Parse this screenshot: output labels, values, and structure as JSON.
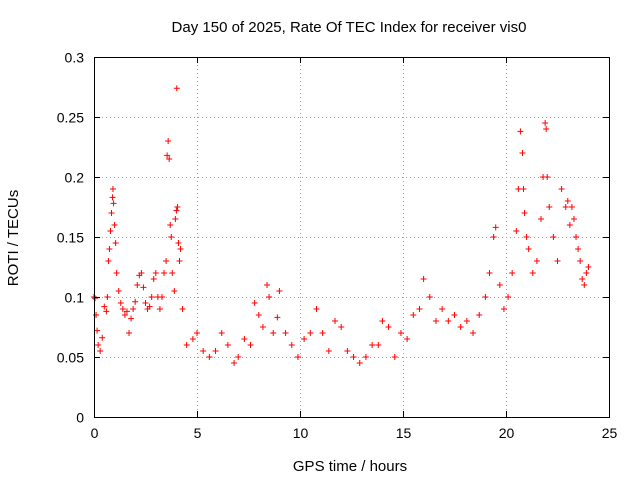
{
  "chart_data": {
    "type": "scatter",
    "title": "Day 150 of 2025, Rate Of TEC Index for receiver vis0",
    "xlabel": "GPS time / hours",
    "ylabel": "ROTI / TECUs",
    "xlim": [
      0,
      25
    ],
    "ylim": [
      0,
      0.3
    ],
    "xticks": [
      "0",
      "5",
      "10",
      "15",
      "20",
      "25"
    ],
    "yticks": [
      "0",
      "0.05",
      "0.1",
      "0.15",
      "0.2",
      "0.25",
      "0.3"
    ],
    "grid": true,
    "marker": "+",
    "color": "#ff0000",
    "legend": "none",
    "series": [
      {
        "points": [
          [
            0.0,
            0.1
          ],
          [
            0.05,
            0.099
          ],
          [
            0.1,
            0.085
          ],
          [
            0.15,
            0.072
          ],
          [
            0.2,
            0.06
          ],
          [
            0.3,
            0.055
          ],
          [
            0.4,
            0.066
          ],
          [
            0.5,
            0.092
          ],
          [
            0.6,
            0.088
          ],
          [
            0.65,
            0.1
          ],
          [
            0.7,
            0.13
          ],
          [
            0.75,
            0.14
          ],
          [
            0.8,
            0.155
          ],
          [
            0.85,
            0.17
          ],
          [
            0.9,
            0.183
          ],
          [
            0.92,
            0.19
          ],
          [
            0.95,
            0.178
          ],
          [
            1.0,
            0.16
          ],
          [
            1.05,
            0.145
          ],
          [
            1.1,
            0.12
          ],
          [
            1.2,
            0.105
          ],
          [
            1.3,
            0.095
          ],
          [
            1.4,
            0.09
          ],
          [
            1.5,
            0.085
          ],
          [
            1.6,
            0.088
          ],
          [
            1.7,
            0.07
          ],
          [
            1.8,
            0.082
          ],
          [
            1.9,
            0.09
          ],
          [
            2.0,
            0.096
          ],
          [
            2.1,
            0.11
          ],
          [
            2.2,
            0.118
          ],
          [
            2.3,
            0.12
          ],
          [
            2.4,
            0.108
          ],
          [
            2.5,
            0.095
          ],
          [
            2.6,
            0.09
          ],
          [
            2.7,
            0.092
          ],
          [
            2.8,
            0.1
          ],
          [
            2.9,
            0.115
          ],
          [
            3.0,
            0.12
          ],
          [
            3.1,
            0.1
          ],
          [
            3.2,
            0.09
          ],
          [
            3.3,
            0.1
          ],
          [
            3.4,
            0.12
          ],
          [
            3.5,
            0.13
          ],
          [
            3.55,
            0.218
          ],
          [
            3.6,
            0.23
          ],
          [
            3.65,
            0.215
          ],
          [
            3.7,
            0.16
          ],
          [
            3.75,
            0.15
          ],
          [
            3.8,
            0.12
          ],
          [
            3.9,
            0.105
          ],
          [
            3.95,
            0.165
          ],
          [
            4.0,
            0.172
          ],
          [
            4.02,
            0.274
          ],
          [
            4.05,
            0.175
          ],
          [
            4.1,
            0.145
          ],
          [
            4.15,
            0.13
          ],
          [
            4.2,
            0.14
          ],
          [
            4.3,
            0.09
          ],
          [
            4.5,
            0.06
          ],
          [
            4.8,
            0.065
          ],
          [
            5.0,
            0.07
          ],
          [
            5.3,
            0.055
          ],
          [
            5.6,
            0.05
          ],
          [
            5.9,
            0.055
          ],
          [
            6.2,
            0.07
          ],
          [
            6.5,
            0.06
          ],
          [
            6.8,
            0.045
          ],
          [
            7.0,
            0.05
          ],
          [
            7.3,
            0.065
          ],
          [
            7.6,
            0.06
          ],
          [
            7.8,
            0.095
          ],
          [
            8.0,
            0.085
          ],
          [
            8.2,
            0.075
          ],
          [
            8.4,
            0.11
          ],
          [
            8.5,
            0.1
          ],
          [
            8.7,
            0.07
          ],
          [
            8.9,
            0.083
          ],
          [
            9.0,
            0.105
          ],
          [
            9.3,
            0.07
          ],
          [
            9.6,
            0.06
          ],
          [
            9.9,
            0.05
          ],
          [
            10.2,
            0.065
          ],
          [
            10.5,
            0.07
          ],
          [
            10.8,
            0.09
          ],
          [
            11.1,
            0.07
          ],
          [
            11.4,
            0.055
          ],
          [
            11.7,
            0.08
          ],
          [
            12.0,
            0.075
          ],
          [
            12.3,
            0.055
          ],
          [
            12.6,
            0.05
          ],
          [
            12.9,
            0.045
          ],
          [
            13.2,
            0.05
          ],
          [
            13.5,
            0.06
          ],
          [
            13.8,
            0.06
          ],
          [
            14.0,
            0.08
          ],
          [
            14.3,
            0.075
          ],
          [
            14.6,
            0.05
          ],
          [
            14.9,
            0.07
          ],
          [
            15.2,
            0.065
          ],
          [
            15.5,
            0.085
          ],
          [
            15.8,
            0.09
          ],
          [
            16.0,
            0.115
          ],
          [
            16.3,
            0.1
          ],
          [
            16.6,
            0.08
          ],
          [
            16.9,
            0.09
          ],
          [
            17.2,
            0.08
          ],
          [
            17.5,
            0.085
          ],
          [
            17.8,
            0.075
          ],
          [
            18.1,
            0.08
          ],
          [
            18.4,
            0.07
          ],
          [
            18.7,
            0.085
          ],
          [
            19.0,
            0.1
          ],
          [
            19.2,
            0.12
          ],
          [
            19.4,
            0.15
          ],
          [
            19.5,
            0.158
          ],
          [
            19.7,
            0.11
          ],
          [
            19.9,
            0.09
          ],
          [
            20.1,
            0.1
          ],
          [
            20.3,
            0.12
          ],
          [
            20.5,
            0.155
          ],
          [
            20.6,
            0.19
          ],
          [
            20.7,
            0.238
          ],
          [
            20.8,
            0.22
          ],
          [
            20.85,
            0.19
          ],
          [
            20.9,
            0.17
          ],
          [
            21.0,
            0.15
          ],
          [
            21.1,
            0.14
          ],
          [
            21.3,
            0.12
          ],
          [
            21.5,
            0.13
          ],
          [
            21.7,
            0.165
          ],
          [
            21.8,
            0.2
          ],
          [
            21.9,
            0.245
          ],
          [
            21.95,
            0.24
          ],
          [
            22.0,
            0.2
          ],
          [
            22.1,
            0.175
          ],
          [
            22.3,
            0.15
          ],
          [
            22.5,
            0.13
          ],
          [
            22.7,
            0.19
          ],
          [
            22.9,
            0.175
          ],
          [
            23.0,
            0.18
          ],
          [
            23.1,
            0.16
          ],
          [
            23.2,
            0.175
          ],
          [
            23.3,
            0.165
          ],
          [
            23.4,
            0.15
          ],
          [
            23.5,
            0.14
          ],
          [
            23.6,
            0.13
          ],
          [
            23.7,
            0.115
          ],
          [
            23.8,
            0.11
          ],
          [
            23.9,
            0.12
          ],
          [
            24.0,
            0.125
          ]
        ]
      }
    ]
  }
}
